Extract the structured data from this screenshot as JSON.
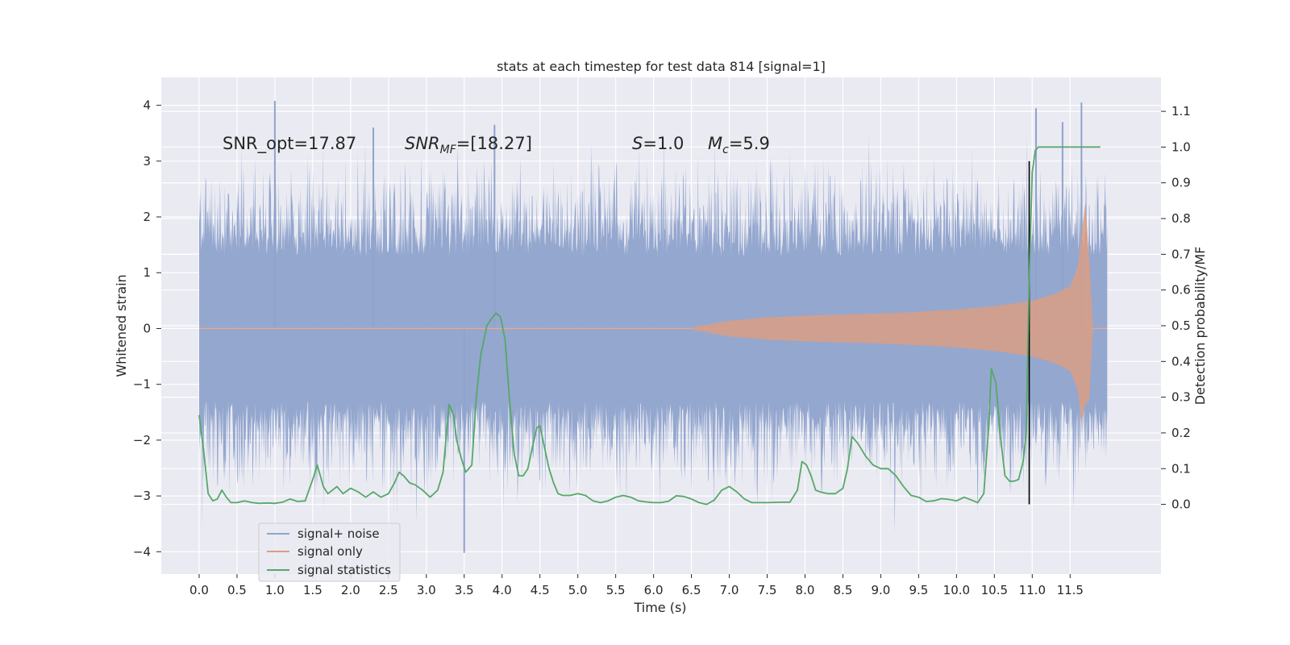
{
  "chart_data": {
    "type": "line",
    "title": "stats at each timestep for test data 814 [signal=1]",
    "xlabel": "Time (s)",
    "ylabel": "Whitened strain",
    "y2label": "Detection probability/MF",
    "xlim": [
      -0.5,
      12.7
    ],
    "ylim": [
      -4.4,
      4.5
    ],
    "y2lim": [
      -0.195,
      1.195
    ],
    "x_ticks": [
      0.0,
      0.5,
      1.0,
      1.5,
      2.0,
      2.5,
      3.0,
      3.5,
      4.0,
      4.5,
      5.0,
      5.5,
      6.0,
      6.5,
      7.0,
      7.5,
      8.0,
      8.5,
      9.0,
      9.5,
      10.0,
      10.5,
      11.0,
      11.5
    ],
    "x_tick_labels": [
      "0.0",
      "0.5",
      "1.0",
      "1.5",
      "2.0",
      "2.5",
      "3.0",
      "3.5",
      "4.0",
      "4.5",
      "5.0",
      "5.5",
      "6.0",
      "6.5",
      "7.0",
      "7.5",
      "8.0",
      "8.5",
      "9.0",
      "9.5",
      "10.0",
      "10.5",
      "11.0",
      "11.5"
    ],
    "y_ticks": [
      4,
      3,
      2,
      1,
      0,
      -1,
      -2,
      -3,
      -4
    ],
    "y_tick_labels": [
      "4",
      "3",
      "2",
      "1",
      "0",
      "−1",
      "−2",
      "−3",
      "−4"
    ],
    "y2_ticks": [
      1.1,
      1.0,
      0.9,
      0.8,
      0.7,
      0.6,
      0.5,
      0.4,
      0.3,
      0.2,
      0.1,
      0.0
    ],
    "y2_tick_labels": [
      "1.1",
      "1.0",
      "0.9",
      "0.8",
      "0.7",
      "0.6",
      "0.5",
      "0.4",
      "0.3",
      "0.2",
      "0.1",
      "0.0"
    ],
    "grid": true,
    "legend_position": "lower-left",
    "annotations": {
      "snr_opt": "SNR_opt=17.87",
      "snr_mf_main": "SNR",
      "snr_mf_sub": "MF",
      "snr_mf_value": "=[18.27]",
      "s_symbol": "S",
      "s_value": "=1.0",
      "mc_main": "M",
      "mc_sub": "c",
      "mc_value": "=5.9"
    },
    "series": [
      {
        "name": "signal+ noise",
        "color": "#8fa3cc",
        "kind": "noise",
        "x_range": [
          0.0,
          11.99
        ],
        "core_amplitude": 1.3,
        "typical_max": 2.0,
        "max": 4.08,
        "min": -4.02
      },
      {
        "name": "signal only",
        "color": "#d99d85",
        "kind": "chirp",
        "x": [
          6.5,
          7.0,
          7.5,
          8.0,
          8.5,
          9.0,
          9.5,
          10.0,
          10.5,
          11.0,
          11.3,
          11.5,
          11.6,
          11.65,
          11.7,
          11.75,
          11.8
        ],
        "envelope": [
          0.02,
          0.14,
          0.2,
          0.23,
          0.25,
          0.27,
          0.3,
          0.34,
          0.4,
          0.5,
          0.62,
          0.76,
          1.1,
          1.7,
          2.25,
          1.3,
          0.05
        ]
      },
      {
        "name": "signal statistics",
        "color": "#55a868",
        "axis": "right",
        "x": [
          0.0,
          0.06,
          0.12,
          0.18,
          0.24,
          0.3,
          0.36,
          0.42,
          0.5,
          0.6,
          0.7,
          0.8,
          0.9,
          1.0,
          1.1,
          1.2,
          1.3,
          1.4,
          1.5,
          1.56,
          1.6,
          1.64,
          1.7,
          1.76,
          1.82,
          1.9,
          2.0,
          2.1,
          2.2,
          2.3,
          2.4,
          2.5,
          2.58,
          2.64,
          2.7,
          2.78,
          2.85,
          2.95,
          3.05,
          3.15,
          3.22,
          3.3,
          3.36,
          3.4,
          3.46,
          3.52,
          3.6,
          3.66,
          3.72,
          3.8,
          3.86,
          3.92,
          3.98,
          4.04,
          4.1,
          4.16,
          4.22,
          4.28,
          4.34,
          4.4,
          4.46,
          4.5,
          4.56,
          4.62,
          4.68,
          4.74,
          4.8,
          4.9,
          5.0,
          5.1,
          5.2,
          5.3,
          5.4,
          5.5,
          5.6,
          5.7,
          5.8,
          5.9,
          6.0,
          6.1,
          6.2,
          6.3,
          6.4,
          6.5,
          6.6,
          6.7,
          6.8,
          6.9,
          7.0,
          7.1,
          7.2,
          7.3,
          7.5,
          7.7,
          7.8,
          7.9,
          7.96,
          8.02,
          8.08,
          8.14,
          8.2,
          8.3,
          8.4,
          8.5,
          8.56,
          8.62,
          8.7,
          8.8,
          8.9,
          9.0,
          9.1,
          9.2,
          9.3,
          9.4,
          9.5,
          9.6,
          9.7,
          9.8,
          9.9,
          10.0,
          10.1,
          10.2,
          10.28,
          10.36,
          10.42,
          10.46,
          10.52,
          10.58,
          10.64,
          10.7,
          10.76,
          10.82,
          10.88,
          10.92,
          10.96,
          11.0,
          11.04,
          11.08,
          11.12,
          11.2,
          11.3,
          11.5,
          11.7,
          11.8,
          11.9
        ],
        "values": [
          0.25,
          0.15,
          0.03,
          0.01,
          0.015,
          0.04,
          0.02,
          0.005,
          0.005,
          0.01,
          0.005,
          0.003,
          0.004,
          0.003,
          0.006,
          0.015,
          0.008,
          0.01,
          0.07,
          0.11,
          0.08,
          0.05,
          0.03,
          0.04,
          0.05,
          0.03,
          0.045,
          0.035,
          0.02,
          0.035,
          0.02,
          0.03,
          0.06,
          0.09,
          0.08,
          0.06,
          0.055,
          0.04,
          0.02,
          0.04,
          0.09,
          0.28,
          0.25,
          0.18,
          0.13,
          0.09,
          0.11,
          0.3,
          0.42,
          0.5,
          0.52,
          0.535,
          0.525,
          0.46,
          0.29,
          0.14,
          0.08,
          0.08,
          0.1,
          0.16,
          0.215,
          0.22,
          0.16,
          0.1,
          0.06,
          0.03,
          0.025,
          0.025,
          0.03,
          0.025,
          0.01,
          0.005,
          0.01,
          0.02,
          0.025,
          0.02,
          0.01,
          0.007,
          0.005,
          0.005,
          0.009,
          0.024,
          0.022,
          0.015,
          0.005,
          0.0,
          0.012,
          0.04,
          0.05,
          0.035,
          0.015,
          0.005,
          0.005,
          0.006,
          0.006,
          0.04,
          0.12,
          0.11,
          0.08,
          0.04,
          0.035,
          0.03,
          0.03,
          0.045,
          0.1,
          0.19,
          0.17,
          0.135,
          0.11,
          0.1,
          0.1,
          0.08,
          0.05,
          0.025,
          0.02,
          0.008,
          0.01,
          0.016,
          0.014,
          0.01,
          0.02,
          0.012,
          0.005,
          0.03,
          0.2,
          0.38,
          0.34,
          0.19,
          0.08,
          0.065,
          0.065,
          0.07,
          0.12,
          0.2,
          0.63,
          0.93,
          0.99,
          1.0,
          1.0,
          1.0,
          1.0,
          1.0,
          1.0,
          1.0,
          1.0
        ]
      }
    ],
    "vertical_marker": {
      "x": 10.96,
      "color": "#000000"
    }
  }
}
